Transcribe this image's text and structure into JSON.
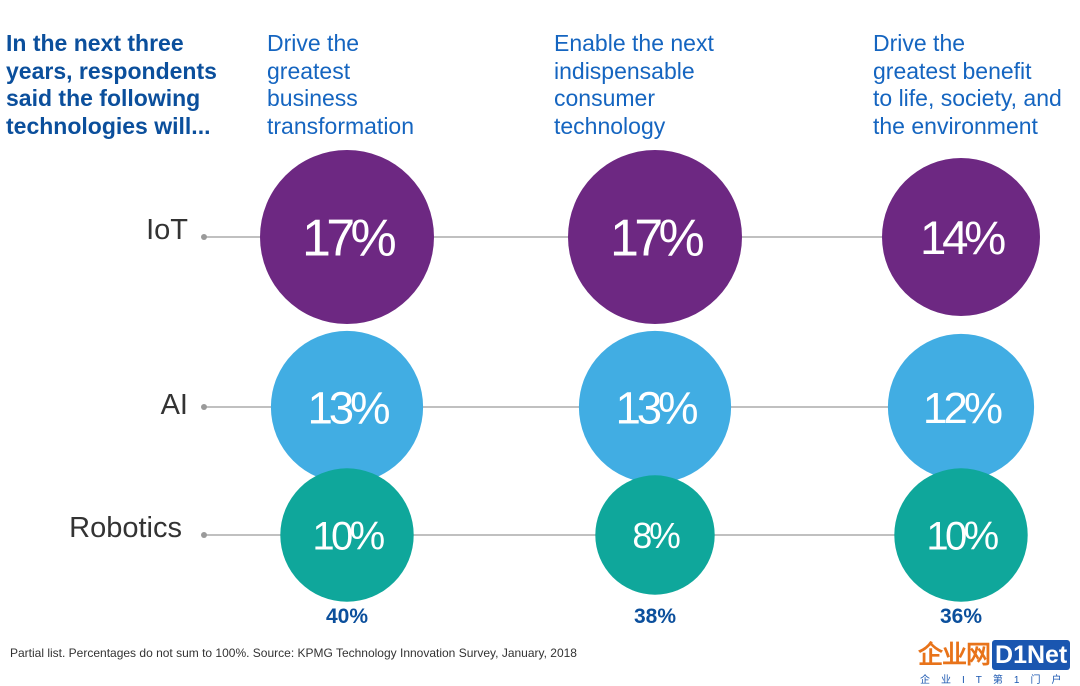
{
  "intro_text": "In the next three\nyears, respondents\nsaid the following\ntechnologies will...",
  "footnote": "Partial list. Percentages do not sum to 100%. Source: KPMG Technology Innovation Survey, January, 2018",
  "logo": {
    "cn_text": "企业网",
    "en_text": "D1Net",
    "subtitle": "企业IT第1门户"
  },
  "colors": {
    "heading": "#1565c0",
    "intro": "#0b4f9c",
    "iot": "#6d2882",
    "ai": "#41ade3",
    "robotics": "#0fa79b",
    "line": "#9a9a9a"
  },
  "chart_data": {
    "type": "bubble-matrix",
    "columns": [
      {
        "label": "Drive the\ngreatest\nbusiness\ntransformation",
        "total": "40%"
      },
      {
        "label": "Enable the next\nindispensable\nconsumer\ntechnology",
        "total": "38%"
      },
      {
        "label": "Drive the\ngreatest benefit\nto life, society, and\nthe environment",
        "total": "36%"
      }
    ],
    "rows": [
      {
        "name": "IoT",
        "values": [
          17,
          17,
          14
        ],
        "labels": [
          "17%",
          "17%",
          "14%"
        ]
      },
      {
        "name": "AI",
        "values": [
          13,
          13,
          12
        ],
        "labels": [
          "13%",
          "13%",
          "12%"
        ]
      },
      {
        "name": "Robotics",
        "values": [
          10,
          8,
          10
        ],
        "labels": [
          "10%",
          "8%",
          "10%"
        ]
      }
    ],
    "unit": "%"
  }
}
